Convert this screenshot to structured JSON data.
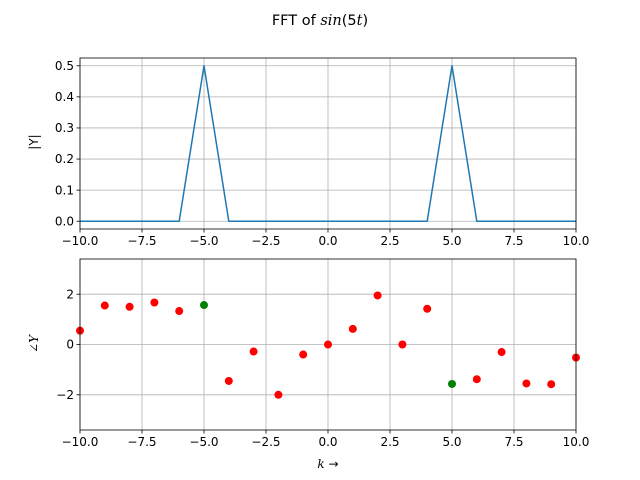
{
  "figure": {
    "title_prefix": "FFT of ",
    "title_math": "sin",
    "title_arg": "(5",
    "title_var": "t",
    "title_close": ")"
  },
  "chart_data": [
    {
      "type": "line",
      "ylabel": "|Y|",
      "xlim": [
        -10,
        10
      ],
      "ylim": [
        -0.025,
        0.525
      ],
      "grid": true,
      "xticks": [
        -10.0,
        -7.5,
        -5.0,
        -2.5,
        0.0,
        2.5,
        5.0,
        7.5,
        10.0
      ],
      "xtick_labels": [
        "−10.0",
        "−7.5",
        "−5.0",
        "−2.5",
        "0.0",
        "2.5",
        "5.0",
        "7.5",
        "10.0"
      ],
      "yticks": [
        0.0,
        0.1,
        0.2,
        0.3,
        0.4,
        0.5
      ],
      "ytick_labels": [
        "0.0",
        "0.1",
        "0.2",
        "0.3",
        "0.4",
        "0.5"
      ],
      "series": [
        {
          "color": "#1f77b4",
          "x": [
            -10,
            -9,
            -8,
            -7,
            -6,
            -5,
            -4,
            -3,
            -2,
            -1,
            0,
            1,
            2,
            3,
            4,
            5,
            6,
            7,
            8,
            9,
            10
          ],
          "y": [
            0,
            0,
            0,
            0,
            0,
            0.5,
            0,
            0,
            0,
            0,
            0,
            0,
            0,
            0,
            0,
            0.5,
            0,
            0,
            0,
            0,
            0
          ]
        }
      ]
    },
    {
      "type": "scatter",
      "ylabel": "∠Y",
      "xlabel_var": "k",
      "xlabel_arrow": " →",
      "xlim": [
        -10,
        10
      ],
      "ylim": [
        -3.4,
        3.4
      ],
      "grid": true,
      "xticks": [
        -10.0,
        -7.5,
        -5.0,
        -2.5,
        0.0,
        2.5,
        5.0,
        7.5,
        10.0
      ],
      "xtick_labels": [
        "−10.0",
        "−7.5",
        "−5.0",
        "−2.5",
        "0.0",
        "2.5",
        "5.0",
        "7.5",
        "10.0"
      ],
      "yticks": [
        -2,
        0,
        2
      ],
      "ytick_labels": [
        "−2",
        "0",
        "2"
      ],
      "series": [
        {
          "color": "#ff0000",
          "x": [
            -10,
            -9,
            -8,
            -7,
            -6,
            -4,
            -3,
            -2,
            -1,
            0,
            1,
            2,
            3,
            4,
            6,
            7,
            8,
            9,
            10
          ],
          "y": [
            0.55,
            1.55,
            1.5,
            1.67,
            1.33,
            -1.45,
            -0.28,
            -2.0,
            -0.4,
            0.0,
            0.62,
            1.95,
            0.0,
            1.42,
            -1.38,
            -0.3,
            -1.55,
            -1.58,
            -0.52
          ]
        },
        {
          "color": "#008000",
          "x": [
            -5,
            5
          ],
          "y": [
            1.57,
            -1.57
          ]
        }
      ]
    }
  ]
}
